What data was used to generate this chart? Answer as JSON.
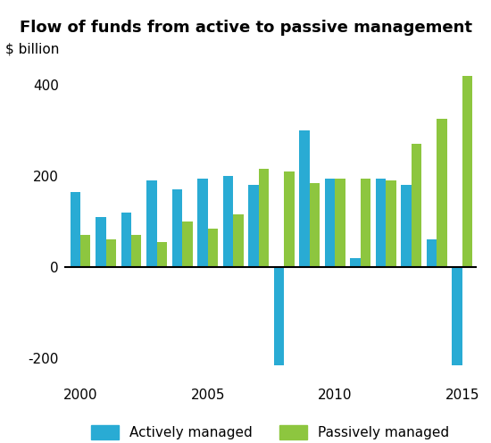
{
  "title": "Flow of funds from active to passive management",
  "ylabel": "$ billion",
  "years": [
    2000,
    2001,
    2002,
    2003,
    2004,
    2005,
    2006,
    2007,
    2008,
    2009,
    2010,
    2011,
    2012,
    2013,
    2014,
    2015
  ],
  "active": [
    165,
    110,
    120,
    190,
    170,
    195,
    200,
    180,
    -215,
    300,
    195,
    20,
    195,
    180,
    60,
    -215
  ],
  "passive": [
    70,
    60,
    70,
    55,
    100,
    85,
    115,
    215,
    210,
    185,
    195,
    195,
    190,
    270,
    325,
    420
  ],
  "active_color": "#29ABD4",
  "passive_color": "#8DC63F",
  "active_label": "Actively managed",
  "passive_label": "Passively managed",
  "ylim": [
    -250,
    450
  ],
  "yticks": [
    -200,
    0,
    200,
    400
  ],
  "xtick_labels": [
    2000,
    2005,
    2010,
    2015
  ],
  "background_color": "#ffffff",
  "title_fontsize": 13,
  "axis_fontsize": 11,
  "legend_fontsize": 11
}
